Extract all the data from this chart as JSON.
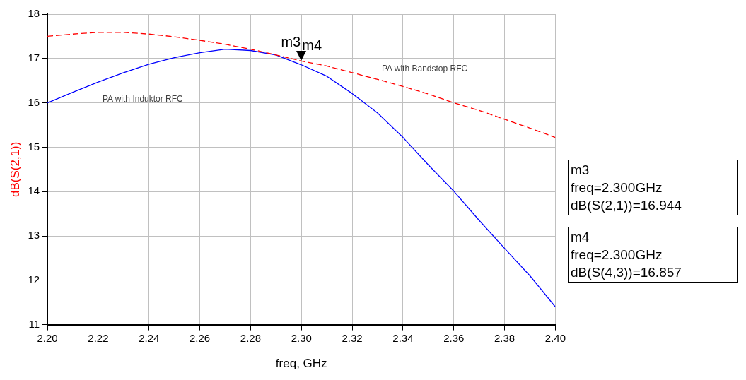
{
  "chart_data": {
    "type": "line",
    "xlabel": "freq, GHz",
    "ylabel": "dB(S(2,1))",
    "x": [
      2.2,
      2.21,
      2.22,
      2.23,
      2.24,
      2.25,
      2.26,
      2.27,
      2.28,
      2.29,
      2.3,
      2.31,
      2.32,
      2.33,
      2.34,
      2.35,
      2.36,
      2.37,
      2.38,
      2.39,
      2.4
    ],
    "series": [
      {
        "name": "PA with Bandstop RFC",
        "color": "#ff0000",
        "line_style": "dashed",
        "values": [
          17.5,
          17.55,
          17.59,
          17.59,
          17.55,
          17.49,
          17.41,
          17.32,
          17.21,
          17.08,
          16.944,
          16.83,
          16.68,
          16.53,
          16.37,
          16.2,
          16.0,
          15.83,
          15.63,
          15.43,
          15.22
        ]
      },
      {
        "name": "PA with Induktor RFC",
        "color": "#0000ff",
        "line_style": "solid",
        "values": [
          16.0,
          16.24,
          16.47,
          16.68,
          16.87,
          17.02,
          17.13,
          17.21,
          17.18,
          17.08,
          16.857,
          16.6,
          16.21,
          15.77,
          15.22,
          14.6,
          14.01,
          13.35,
          12.72,
          12.1,
          11.4
        ]
      }
    ],
    "xlim": [
      2.2,
      2.4
    ],
    "xticks": [
      {
        "value": 2.2,
        "label": "2.20"
      },
      {
        "value": 2.22,
        "label": "2.22"
      },
      {
        "value": 2.24,
        "label": "2.24"
      },
      {
        "value": 2.26,
        "label": "2.26"
      },
      {
        "value": 2.28,
        "label": "2.28"
      },
      {
        "value": 2.3,
        "label": "2.30"
      },
      {
        "value": 2.32,
        "label": "2.32"
      },
      {
        "value": 2.34,
        "label": "2.34"
      },
      {
        "value": 2.36,
        "label": "2.36"
      },
      {
        "value": 2.38,
        "label": "2.38"
      },
      {
        "value": 2.4,
        "label": "2.40"
      }
    ],
    "ylim": [
      11,
      18
    ],
    "yticks": [
      11,
      12,
      13,
      14,
      15,
      16,
      17,
      18
    ],
    "grid": true,
    "legend": false,
    "marker": "none",
    "annotations": [
      {
        "text": "m3",
        "x": 2.3,
        "y": 16.944
      },
      {
        "text": "m4",
        "x": 2.3,
        "y": 16.857
      },
      "m3\nfreq=2.300GHz\ndB(S(2,1))=16.944",
      "m4\nfreq=2.300GHz\ndB(S(4,3))=16.857"
    ]
  }
}
